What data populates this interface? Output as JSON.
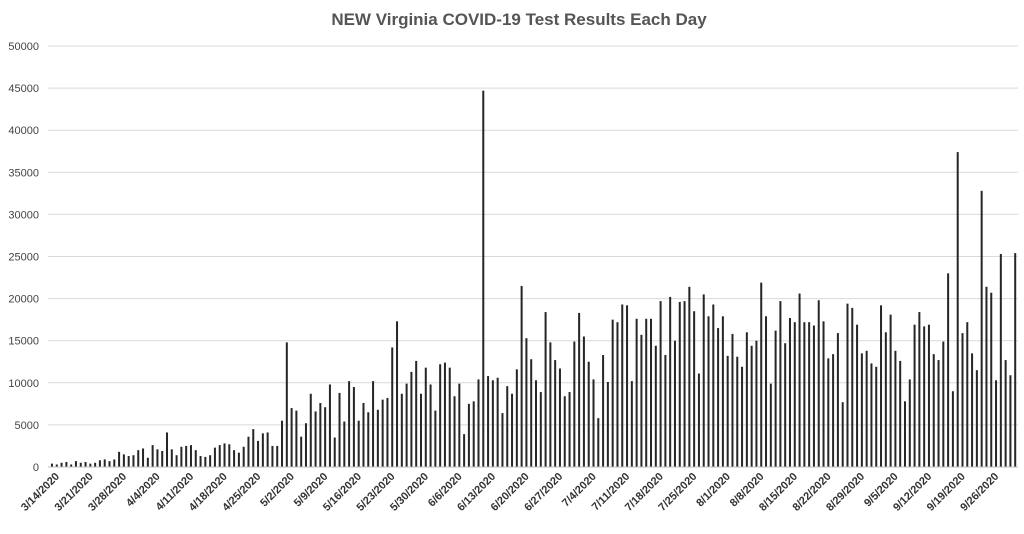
{
  "chart_data": {
    "type": "bar",
    "title": "NEW Virginia COVID-19 Test Results Each Day",
    "xlabel": "",
    "ylabel": "",
    "ylim": [
      0,
      50000
    ],
    "yticks": [
      0,
      5000,
      10000,
      15000,
      20000,
      25000,
      30000,
      35000,
      40000,
      45000,
      50000
    ],
    "grid": true,
    "legend": "none",
    "bar_color": "#262626",
    "x_start": "2020-03-14",
    "x_end": "2020-09-30",
    "xtick_labels": [
      "3/14/2020",
      "3/21/2020",
      "3/28/2020",
      "4/4/2020",
      "4/11/2020",
      "4/18/2020",
      "4/25/2020",
      "5/2/2020",
      "5/9/2020",
      "5/16/2020",
      "5/23/2020",
      "5/30/2020",
      "6/6/2020",
      "6/13/2020",
      "6/20/2020",
      "6/27/2020",
      "7/4/2020",
      "7/11/2020",
      "7/18/2020",
      "7/25/2020",
      "8/1/2020",
      "8/8/2020",
      "8/15/2020",
      "8/22/2020",
      "8/29/2020",
      "9/5/2020",
      "9/12/2020",
      "9/19/2020",
      "9/26/2020"
    ],
    "values": [
      400,
      300,
      500,
      600,
      300,
      700,
      500,
      600,
      400,
      500,
      800,
      900,
      700,
      900,
      1800,
      1500,
      1300,
      1400,
      2000,
      2200,
      1100,
      2600,
      2100,
      1900,
      4100,
      2100,
      1400,
      2400,
      2500,
      2600,
      2000,
      1300,
      1200,
      1400,
      2300,
      2600,
      2800,
      2700,
      2000,
      1700,
      2400,
      3600,
      4500,
      3100,
      4000,
      4100,
      2500,
      2500,
      5500,
      14800,
      7000,
      6700,
      3600,
      5200,
      8700,
      6600,
      7600,
      7100,
      9800,
      3500,
      8800,
      5400,
      10200,
      9500,
      5500,
      7600,
      6500,
      10200,
      6800,
      8000,
      8200,
      14200,
      17300,
      8700,
      9900,
      11300,
      12600,
      8700,
      11800,
      9800,
      6700,
      12200,
      12400,
      11800,
      8400,
      9900,
      3900,
      7500,
      7800,
      10400,
      44700,
      10800,
      10300,
      10600,
      6400,
      9600,
      8700,
      11600,
      21500,
      15300,
      12800,
      10300,
      8900,
      18400,
      14800,
      12700,
      11700,
      8400,
      8900,
      14900,
      18300,
      15500,
      12500,
      10400,
      5800,
      13300,
      10100,
      17500,
      17200,
      19300,
      19200,
      10200,
      17600,
      15700,
      17600,
      17600,
      14400,
      19700,
      13300,
      20200,
      15000,
      19600,
      19700,
      21400,
      18500,
      11100,
      20500,
      17900,
      19300,
      16500,
      17900,
      13200,
      15800,
      13100,
      11900,
      16000,
      14400,
      15000,
      21900,
      17900,
      9900,
      16200,
      19700,
      14700,
      17700,
      17200,
      20600,
      17200,
      17200,
      16800,
      19800,
      17300,
      12900,
      13400,
      15900,
      7700,
      19400,
      18900,
      16900,
      13500,
      13800,
      12300,
      11900,
      19200,
      16000,
      18100,
      13800,
      12600,
      7800,
      10400,
      16900,
      18400,
      16700,
      16900,
      13400,
      12700,
      14900,
      23000,
      9000,
      37400,
      15900,
      17200,
      13500,
      11500,
      32800,
      21400,
      20700,
      10300,
      25300,
      12700,
      10900,
      25400
    ]
  }
}
